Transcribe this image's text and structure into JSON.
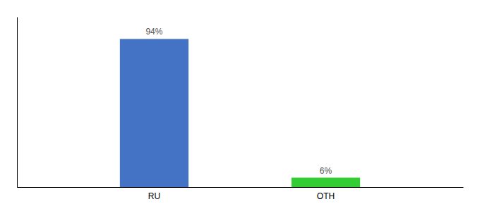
{
  "chart_data": {
    "type": "bar",
    "categories": [
      "RU",
      "OTH"
    ],
    "values": [
      94,
      6
    ],
    "value_labels": [
      "94%",
      "6%"
    ],
    "colors": [
      "#4472c4",
      "#33cc33"
    ],
    "ylim": [
      0,
      108
    ],
    "data_labels": true,
    "tick_labels": "x"
  }
}
